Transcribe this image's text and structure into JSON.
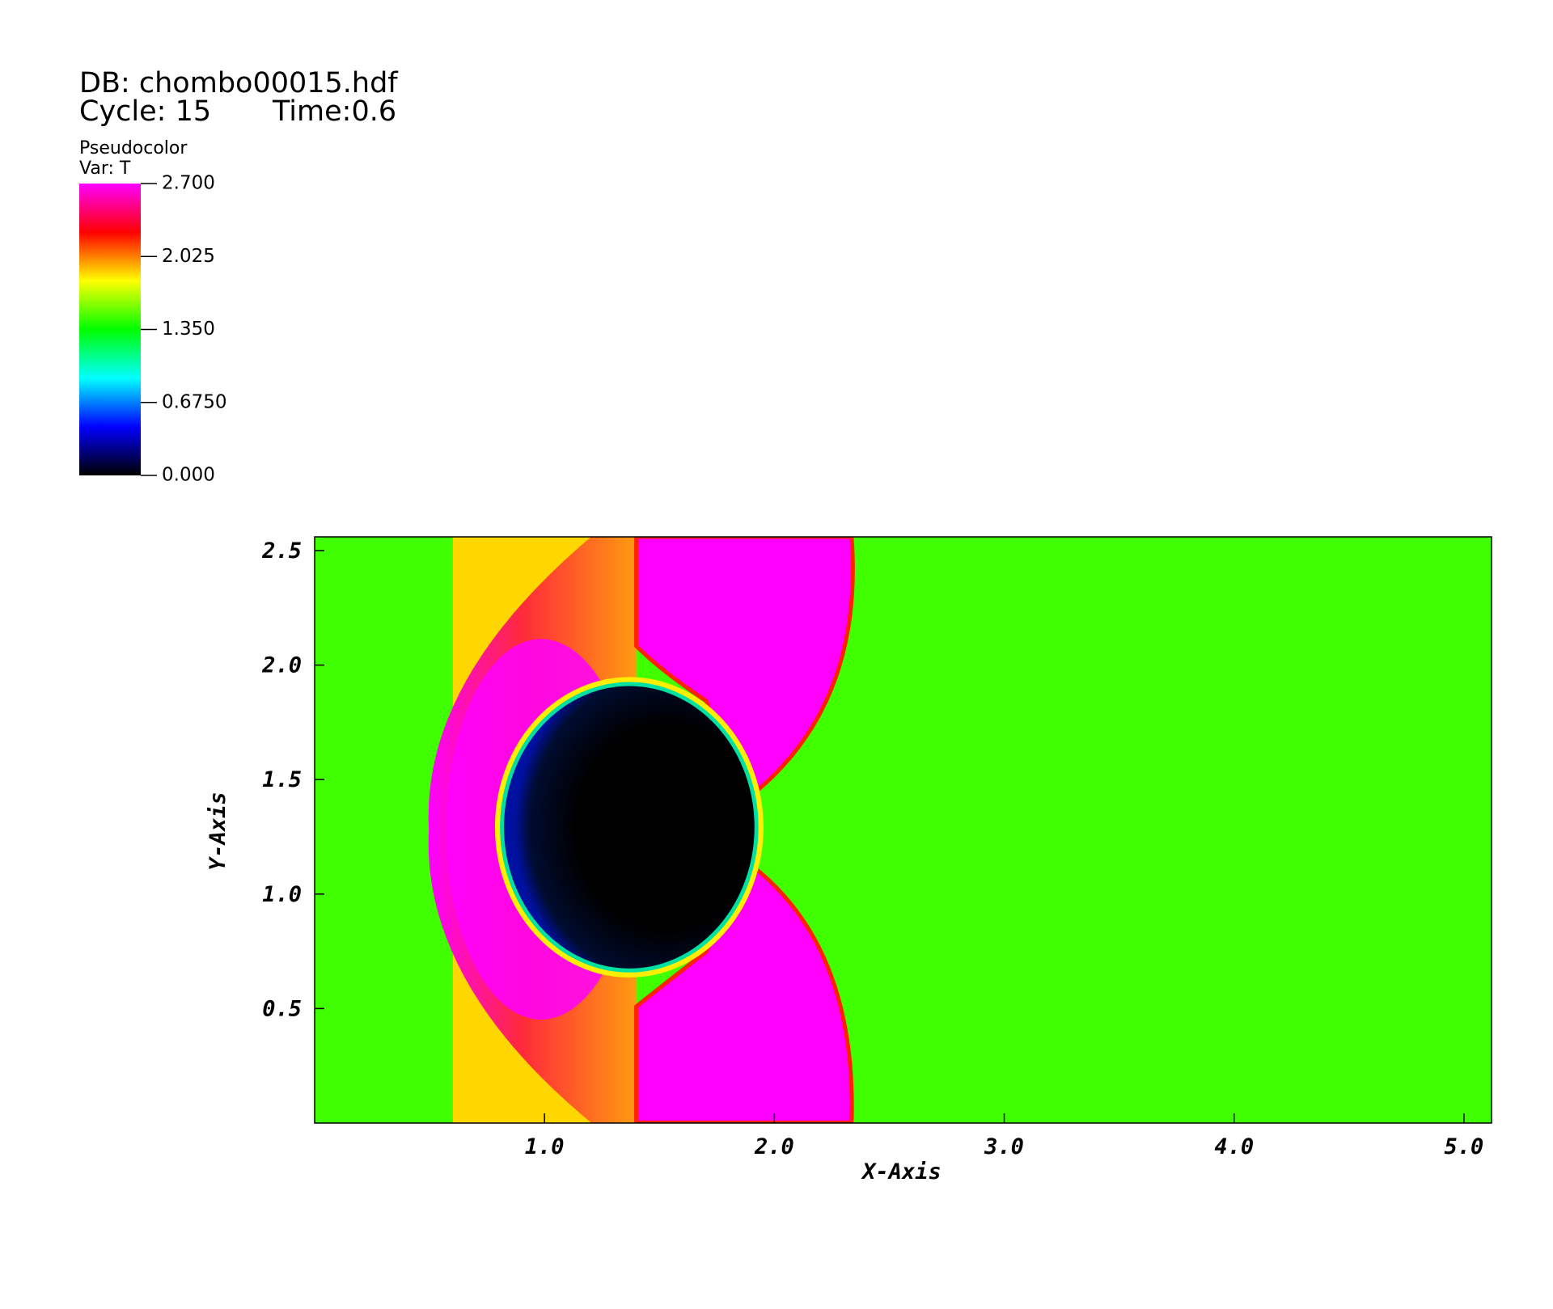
{
  "chart_data": {
    "type": "pseudocolor",
    "database": "DB: chombo00015.hdf",
    "cycle": "Cycle: 15",
    "time": "Time:0.6",
    "plot_name": "Pseudocolor",
    "variable": "Var: T",
    "colormap": [
      "#000000",
      "#0000ff",
      "#00ffff",
      "#00ff00",
      "#ffff00",
      "#ff0000",
      "#ff00ff"
    ],
    "clim": [
      0,
      2.7
    ],
    "cticks": [
      {
        "value": 2.7,
        "label": "2.700"
      },
      {
        "value": 2.025,
        "label": "2.025"
      },
      {
        "value": 1.35,
        "label": "1.350"
      },
      {
        "value": 0.675,
        "label": "0.6750"
      },
      {
        "value": 0,
        "label": "0.000"
      }
    ],
    "x_label": "X-Axis",
    "y_label": "Y-Axis",
    "xlim": [
      0,
      5.12
    ],
    "ylim": [
      0,
      2.56
    ],
    "xticks": [
      {
        "value": 1,
        "label": "1.0"
      },
      {
        "value": 2,
        "label": "2.0"
      },
      {
        "value": 3,
        "label": "3.0"
      },
      {
        "value": 4,
        "label": "4.0"
      },
      {
        "value": 5,
        "label": "5.0"
      }
    ],
    "yticks": [
      0.5,
      {
        "value": 1,
        "label": "1.0"
      },
      1.5,
      {
        "value": 2,
        "label": "2.0"
      },
      2.5
    ]
  }
}
